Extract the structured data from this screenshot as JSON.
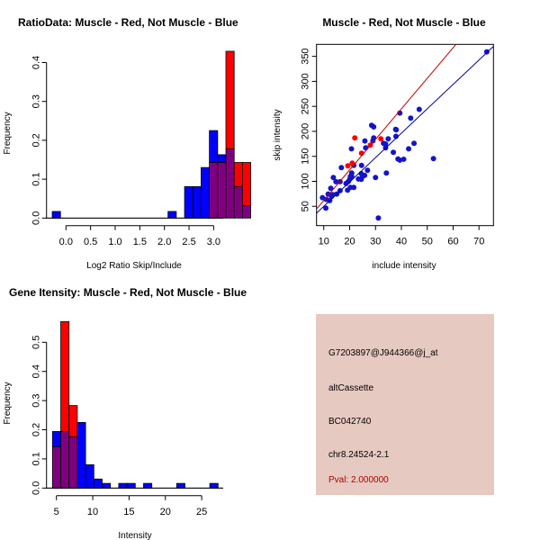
{
  "colors": {
    "muscle": "#FF0000",
    "not_muscle": "#0000FF",
    "overlap": "#7F007F",
    "info_bg": "#E6C9C1",
    "pval": "#B00000",
    "red_line": "#C00000",
    "blue_line": "#00009C"
  },
  "chart_data": [
    {
      "type": "bar",
      "subtype": "overlaid-histogram",
      "title": "RatioData: Muscle - Red, Not Muscle - Blue",
      "xlabel": "Log2 Ratio Skip/Include",
      "ylabel": "Frequency",
      "xticks": [
        "0.0",
        "0.5",
        "1.0",
        "1.5",
        "2.0",
        "2.5",
        "3.0"
      ],
      "xtick_values": [
        0,
        0.5,
        1,
        1.5,
        2,
        2.5,
        3
      ],
      "yticks": [
        "0.0",
        "0.1",
        "0.2",
        "0.3",
        "0.4"
      ],
      "ytick_values": [
        0,
        0.1,
        0.2,
        0.3,
        0.4
      ],
      "bin_start": -0.279,
      "bin_width": 0.168,
      "series": [
        {
          "name": "Not Muscle",
          "color": "blue",
          "values": [
            0.017,
            0,
            0,
            0,
            0,
            0,
            0,
            0,
            0,
            0,
            0,
            0,
            0,
            0,
            0.017,
            0,
            0.081,
            0.081,
            0.13,
            0.225,
            0.163,
            0.178,
            0.081,
            0.032
          ]
        },
        {
          "name": "Muscle",
          "color": "red",
          "values": [
            0,
            0,
            0,
            0,
            0,
            0,
            0,
            0,
            0,
            0,
            0,
            0,
            0,
            0,
            0,
            0,
            0,
            0,
            0,
            0.143,
            0.143,
            0.429,
            0.143,
            0.143
          ]
        }
      ]
    },
    {
      "type": "scatter",
      "title": "Muscle - Red, Not Muscle - Blue",
      "xlabel": "include intensity",
      "ylabel": "skip intensity",
      "xlim": [
        7.2,
        75.6
      ],
      "ylim": [
        11.4,
        374
      ],
      "xticks": [
        "10",
        "20",
        "30",
        "40",
        "50",
        "60",
        "70"
      ],
      "xtick_values": [
        10,
        20,
        30,
        40,
        50,
        60,
        70
      ],
      "yticks": [
        "50",
        "100",
        "150",
        "200",
        "250",
        "300",
        "350"
      ],
      "ytick_values": [
        50,
        100,
        150,
        200,
        250,
        300,
        350
      ],
      "series": [
        {
          "name": "Muscle",
          "color": "red",
          "points": [
            [
              22.0,
              186.8
            ],
            [
              19.3,
              131
            ],
            [
              21.0,
              136.4
            ],
            [
              24.6,
              156.2
            ],
            [
              28.0,
              172.4
            ],
            [
              32.1,
              185
            ]
          ],
          "fit": {
            "slope": 6.11,
            "intercept": 0.6
          }
        },
        {
          "name": "Not Muscle",
          "color": "blue",
          "points": [
            [
              73.0,
              359
            ],
            [
              46.9,
              244
            ],
            [
              39.4,
              236.6
            ],
            [
              43.6,
              226.4
            ],
            [
              28.5,
              212
            ],
            [
              29.3,
              209
            ],
            [
              37.8,
              204
            ],
            [
              38.0,
              203
            ],
            [
              29.3,
              186.8
            ],
            [
              29.0,
              181
            ],
            [
              37.9,
              190
            ],
            [
              34.9,
              185
            ],
            [
              25.9,
              180.8
            ],
            [
              33.1,
              176
            ],
            [
              33.9,
              174.8
            ],
            [
              44.9,
              176
            ],
            [
              20.7,
              165
            ],
            [
              26.2,
              167
            ],
            [
              33.9,
              167
            ],
            [
              36.9,
              158
            ],
            [
              42.8,
              165
            ],
            [
              38.7,
              144.8
            ],
            [
              39.4,
              142.4
            ],
            [
              40.9,
              144.2
            ],
            [
              52.4,
              145.4
            ],
            [
              16.8,
              127.4
            ],
            [
              21.6,
              132
            ],
            [
              24.6,
              132
            ],
            [
              13.7,
              107.6
            ],
            [
              26.9,
              122
            ],
            [
              34.2,
              116.6
            ],
            [
              20.8,
              116.6
            ],
            [
              20.8,
              110
            ],
            [
              30.0,
              107.6
            ],
            [
              24.5,
              115.4
            ],
            [
              25.8,
              111.8
            ],
            [
              25.0,
              110
            ],
            [
              23.4,
              104.6
            ],
            [
              24.5,
              104
            ],
            [
              14.7,
              99.2
            ],
            [
              16.3,
              99.2
            ],
            [
              18.6,
              95.6
            ],
            [
              19.5,
              99.8
            ],
            [
              20.1,
              104.6
            ],
            [
              20.3,
              110
            ],
            [
              12.7,
              86
            ],
            [
              16.3,
              81.2
            ],
            [
              19.2,
              82.4
            ],
            [
              21.6,
              87.8
            ],
            [
              20.3,
              87.8
            ],
            [
              9.5,
              67.4
            ],
            [
              11.7,
              74.6
            ],
            [
              13.5,
              73.4
            ],
            [
              15.0,
              74.6
            ],
            [
              13.0,
              69.8
            ],
            [
              12.3,
              61.4
            ],
            [
              11.0,
              63.8
            ],
            [
              10.8,
              46.4
            ],
            [
              31.1,
              26.6
            ]
          ],
          "fit": {
            "slope": 4.88,
            "intercept": 1.1
          }
        }
      ]
    },
    {
      "type": "bar",
      "subtype": "overlaid-histogram",
      "title": "Gene Itensity: Muscle - Red, Not Muscle - Blue",
      "xlabel": "Intensity",
      "ylabel": "Frequency",
      "xticks": [
        "5",
        "10",
        "15",
        "20",
        "25"
      ],
      "xtick_values": [
        5,
        10,
        15,
        20,
        25
      ],
      "yticks": [
        "0.0",
        "0.1",
        "0.2",
        "0.3",
        "0.4",
        "0.5"
      ],
      "ytick_values": [
        0,
        0.1,
        0.2,
        0.3,
        0.4,
        0.5
      ],
      "bin_start": 4.455,
      "bin_width": 1.14,
      "series": [
        {
          "name": "Not Muscle",
          "color": "blue",
          "values": [
            0.194,
            0.194,
            0.176,
            0.225,
            0.08,
            0.031,
            0.016,
            0,
            0.016,
            0.016,
            0,
            0.016,
            0,
            0,
            0,
            0.016,
            0,
            0,
            0,
            0.016
          ]
        },
        {
          "name": "Muscle",
          "color": "red",
          "values": [
            0.142,
            0.571,
            0.283,
            0,
            0,
            0,
            0,
            0,
            0,
            0,
            0,
            0,
            0,
            0,
            0,
            0,
            0,
            0,
            0,
            0
          ]
        }
      ]
    }
  ],
  "info": {
    "probe_id": "G7203897@J944366@j_at",
    "event_type": "altCassette",
    "accession": "BC042740",
    "location": "chr8.24524-2.1",
    "pval": "Pval: 2.000000"
  }
}
